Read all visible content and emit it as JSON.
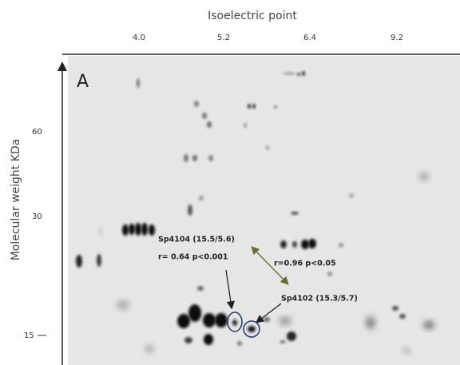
{
  "axes": {
    "x_title": "Isoelectric point",
    "x_ticks": [
      "4.0",
      "5.2",
      "6.4",
      "9.2"
    ],
    "y_title": "Molecular weight KDa",
    "y_ticks": [
      "60",
      "30",
      "15"
    ]
  },
  "panel_label": "A",
  "annotations": [
    "Sp4104 (15.5/5.6)",
    "r= 0.64 p<0.001",
    "r=0.96 p<0.05",
    "Sp4102 (15.3/5.7)"
  ]
}
